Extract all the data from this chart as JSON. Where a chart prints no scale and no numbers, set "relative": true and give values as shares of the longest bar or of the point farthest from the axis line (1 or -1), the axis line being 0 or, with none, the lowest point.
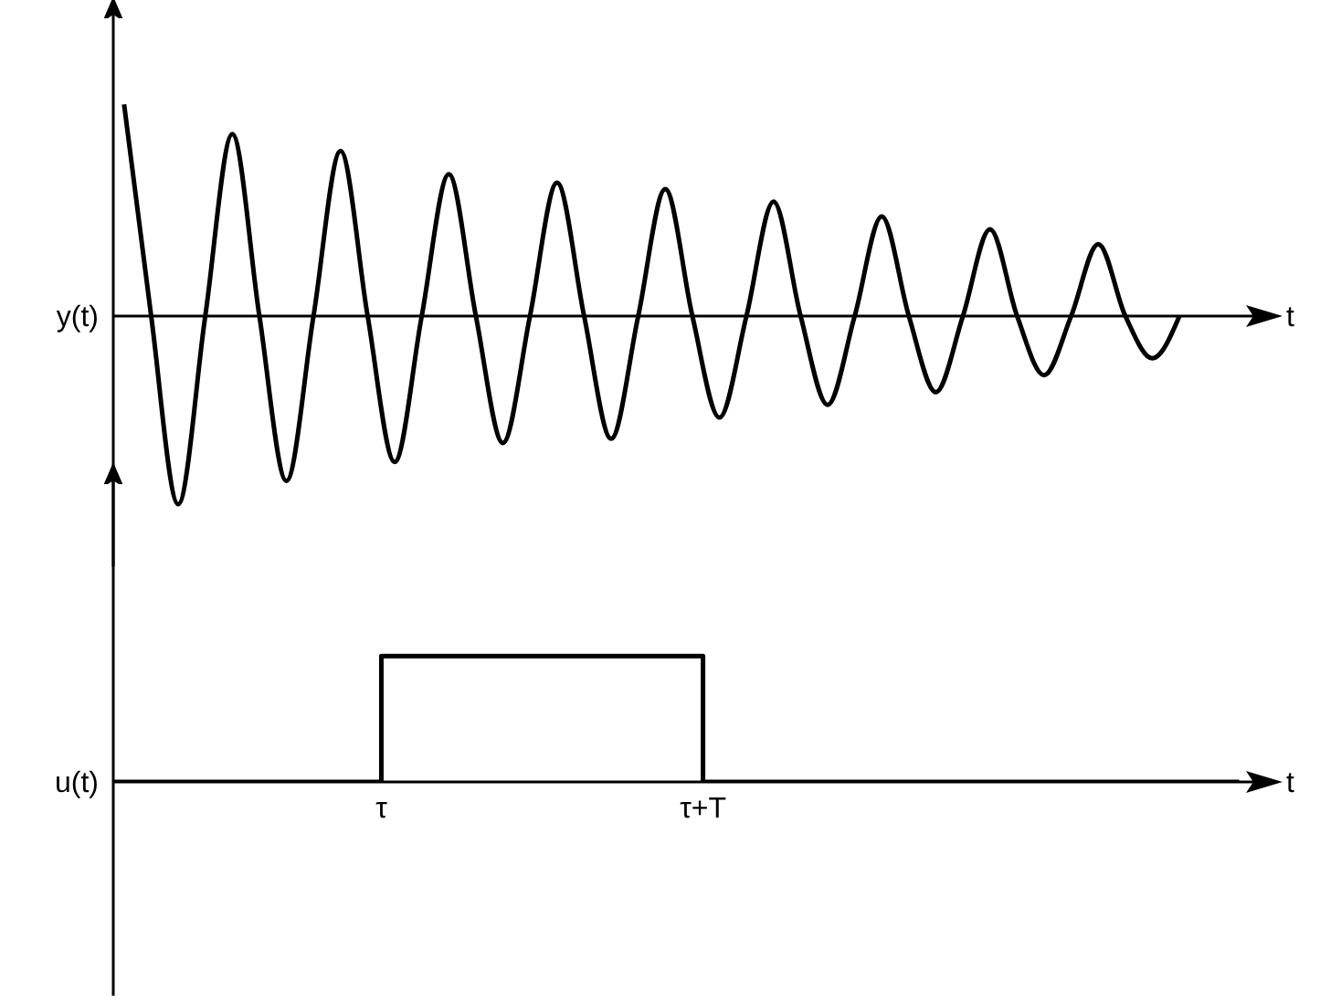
{
  "chart_data": [
    {
      "type": "line",
      "relative": true,
      "ylabel": "y(t)",
      "xlabel": "t",
      "categories": [
        null,
        null,
        null,
        null,
        null,
        null,
        null,
        null,
        null,
        null,
        null,
        null,
        null,
        null,
        null,
        null,
        null,
        null,
        null,
        null,
        null,
        null,
        null,
        null,
        null,
        null,
        null,
        null,
        null,
        null,
        null,
        null,
        null,
        null,
        null,
        null,
        null,
        null,
        null,
        null
      ],
      "series": [
        {
          "color": "#000000",
          "values": [
            1,
            0,
            -0.89,
            0,
            0.86,
            0,
            -0.78,
            0,
            0.78,
            0,
            -0.69,
            0,
            0.67,
            0,
            -0.6,
            0,
            0.63,
            0,
            -0.58,
            0,
            0.6,
            0,
            -0.48,
            0,
            0.54,
            0,
            -0.42,
            0,
            0.47,
            0,
            -0.36,
            0,
            0.41,
            0,
            -0.28,
            0,
            0.34,
            0,
            -0.2,
            0
          ]
        }
      ]
    },
    {
      "type": "step",
      "relative": true,
      "ylabel": "u(t)",
      "xlabel": "t",
      "categories": [
        null,
        null,
        null,
        null,
        null,
        "τ",
        null,
        null,
        null,
        null,
        null,
        "τ+T",
        null,
        null,
        null,
        null,
        null,
        null,
        null,
        null,
        null,
        null
      ],
      "series": [
        {
          "color": "#000000",
          "values": [
            0,
            0,
            0,
            0,
            0,
            1,
            1,
            1,
            1,
            1,
            1,
            0,
            0,
            0,
            0,
            0,
            0,
            0,
            0,
            0,
            0,
            0
          ]
        }
      ]
    }
  ]
}
